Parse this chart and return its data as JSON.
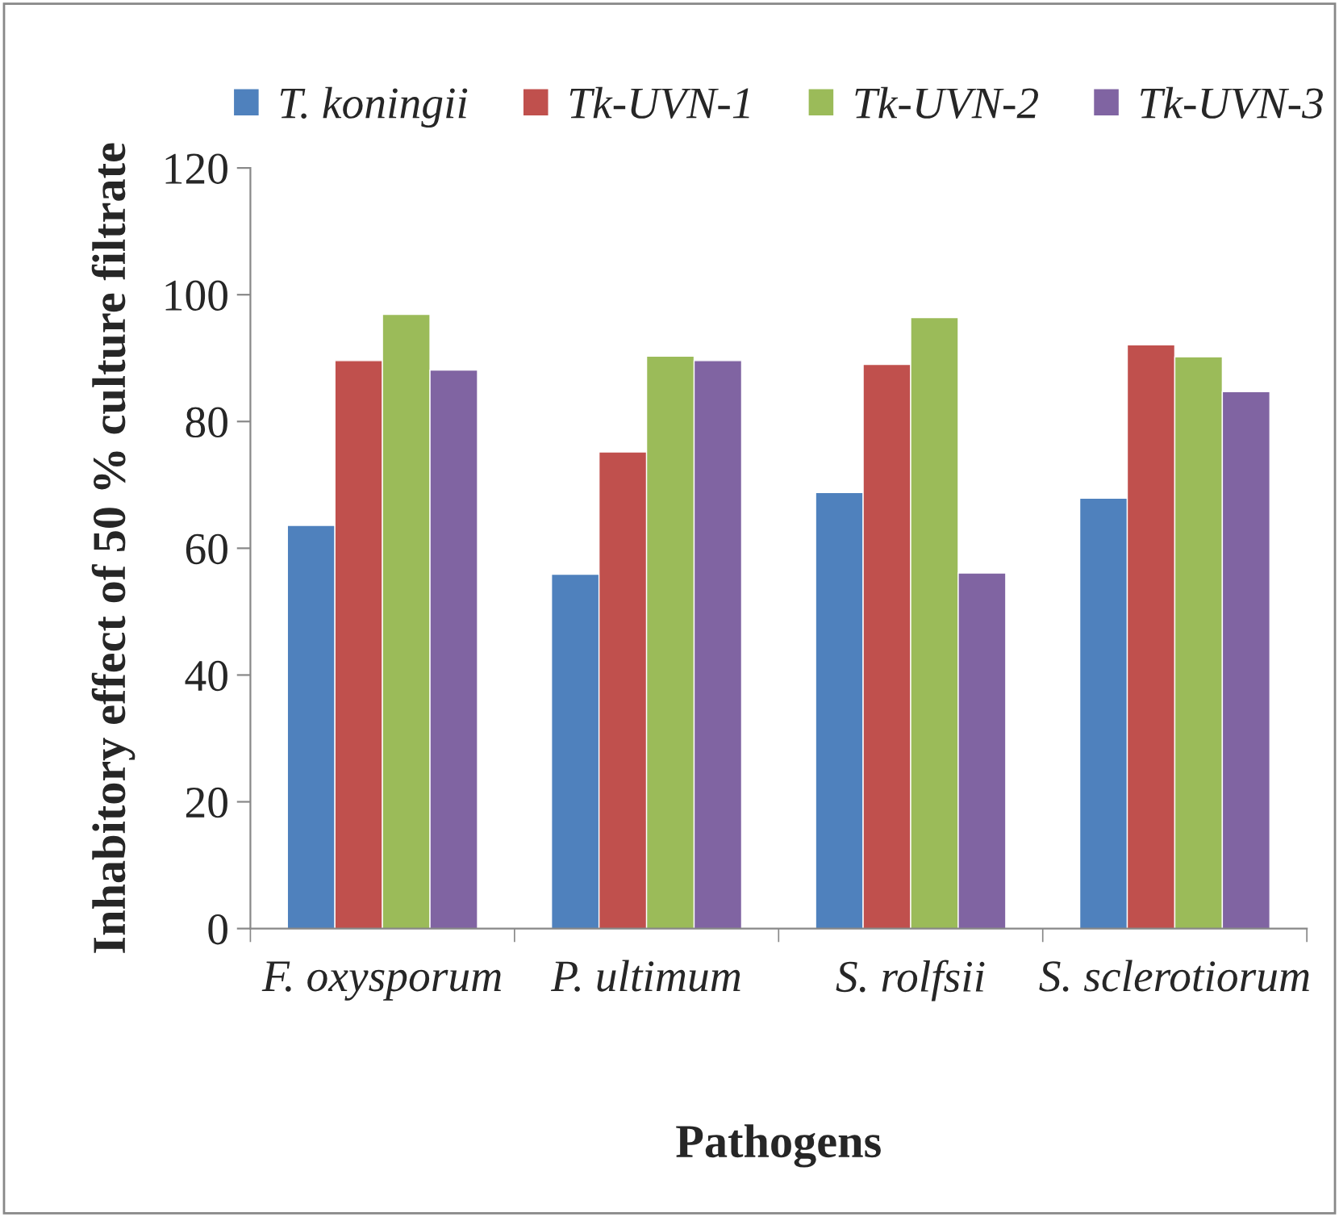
{
  "chart_data": {
    "type": "bar",
    "xlabel": "Pathogens",
    "ylabel": "Inhabitory effect of 50 % culture filtrate",
    "categories": [
      "F. oxysporum",
      "P. ultimum",
      "S. rolfsii",
      "S. sclerotiorum"
    ],
    "series": [
      {
        "name": "T. koningii",
        "color": "#4f81bd",
        "values": [
          63.6,
          55.9,
          68.8,
          67.9
        ]
      },
      {
        "name": "Tk-UVN-1",
        "color": "#c0504d",
        "values": [
          89.6,
          75.2,
          89.0,
          92.1
        ]
      },
      {
        "name": "Tk-UVN-2",
        "color": "#9bbb59",
        "values": [
          96.9,
          90.3,
          96.4,
          90.2
        ]
      },
      {
        "name": "Tk-UVN-3",
        "color": "#8064a2",
        "values": [
          88.1,
          89.6,
          56.1,
          84.7
        ]
      }
    ],
    "ylim": [
      0,
      120
    ],
    "yticks": [
      0,
      20,
      40,
      60,
      80,
      100,
      120
    ],
    "grid": false,
    "legend": "top"
  }
}
